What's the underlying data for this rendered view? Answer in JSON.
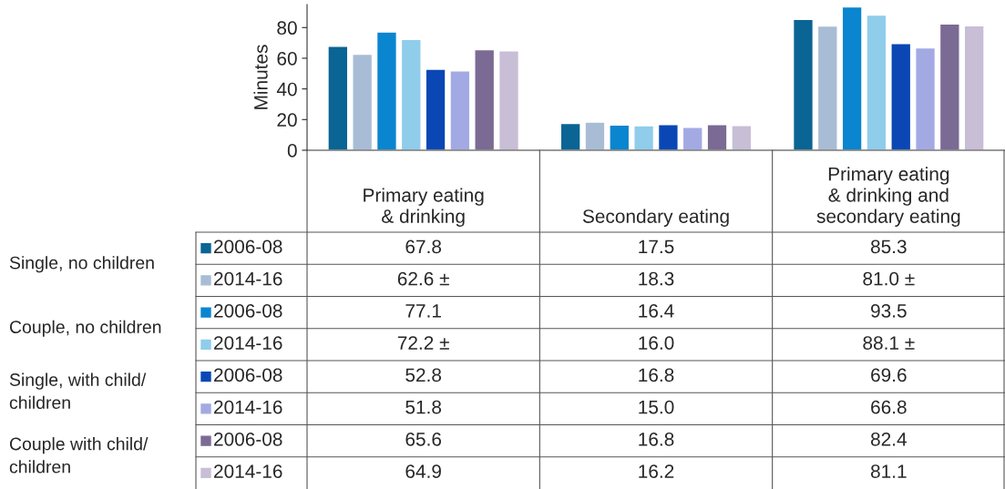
{
  "chart_data": {
    "type": "bar",
    "ylabel": "Minutes",
    "categories": [
      "Primary eating\n& drinking",
      "Secondary eating",
      "Primary eating\n& drinking and\nsecondary eating"
    ],
    "ylim": [
      0,
      95
    ],
    "yticks": [
      0,
      20,
      40,
      60,
      80
    ],
    "grid": false,
    "legend": "bottom left",
    "series": [
      {
        "name": "2006-08",
        "color": "#0a6494",
        "values": [
          67.8,
          17.5,
          85.3
        ],
        "value_labels": [
          "67.8",
          "17.5",
          "85.3"
        ]
      },
      {
        "name": "2014-16",
        "color": "#a9bcd5",
        "values": [
          62.6,
          18.3,
          81.0
        ],
        "value_labels": [
          "62.6 ±",
          "18.3",
          "81.0 ±"
        ]
      },
      {
        "name": "2006-08",
        "color": "#0a85cf",
        "values": [
          77.1,
          16.4,
          93.5
        ],
        "value_labels": [
          "77.1",
          "16.4",
          "93.5"
        ]
      },
      {
        "name": "2014-16",
        "color": "#8fcdeb",
        "values": [
          72.2,
          16.0,
          88.1
        ],
        "value_labels": [
          "72.2 ±",
          "16.0",
          "88.1 ±"
        ]
      },
      {
        "name": "2006-08",
        "color": "#0a47b5",
        "values": [
          52.8,
          16.8,
          69.6
        ],
        "value_labels": [
          "52.8",
          "16.8",
          "69.6"
        ]
      },
      {
        "name": "2014-16",
        "color": "#a3aae3",
        "values": [
          51.8,
          15.0,
          66.8
        ],
        "value_labels": [
          "51.8",
          "15.0",
          "66.8"
        ]
      },
      {
        "name": "2006-08",
        "color": "#7a6a94",
        "values": [
          65.6,
          16.8,
          82.4
        ],
        "value_labels": [
          "65.6",
          "16.8",
          "82.4"
        ]
      },
      {
        "name": "2014-16",
        "color": "#c8bed6",
        "values": [
          64.9,
          16.2,
          81.1
        ],
        "value_labels": [
          "64.9",
          "16.2",
          "81.1"
        ]
      }
    ],
    "annotations": [
      "Single, no children",
      "Couple, no children",
      "Single, with child/\nchildren",
      "Couple with child/\nchildren"
    ]
  }
}
